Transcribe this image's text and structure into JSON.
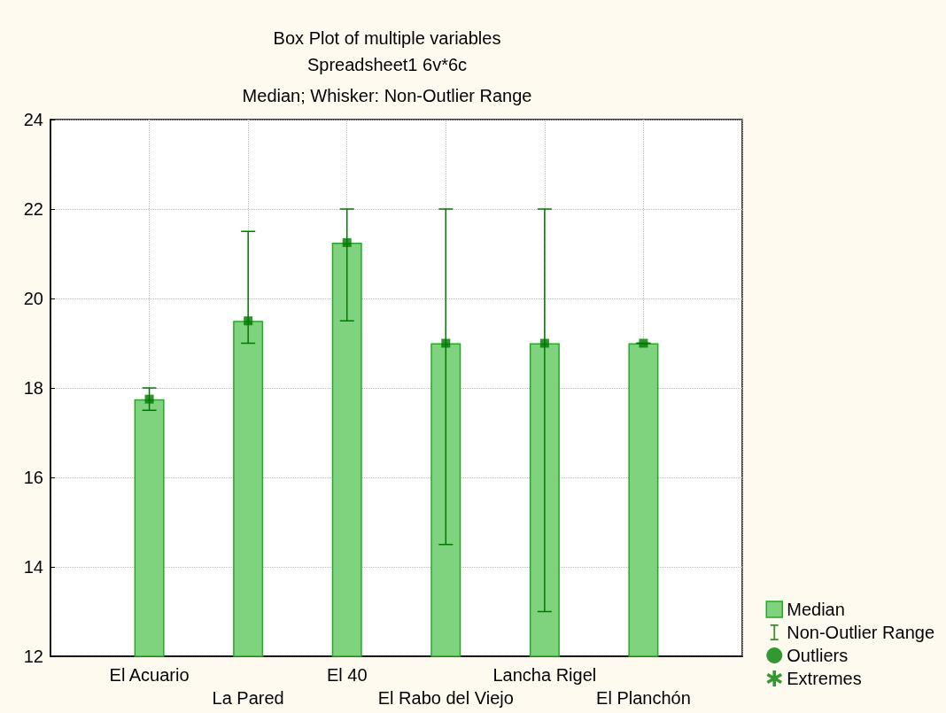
{
  "chart_data": {
    "type": "bar",
    "title": "Box Plot of multiple variables",
    "subtitle": "Spreadsheet1 6v*6c",
    "annotations": [
      "Median; Whisker: Non-Outlier Range"
    ],
    "categories": [
      null,
      "El Acuario",
      "La Pared",
      "El 40",
      "El Rabo del Viejo",
      "Lancha Rigel",
      "El Planchón",
      null
    ],
    "series": [
      {
        "name": "Median",
        "color": "#7fd37f",
        "values": [
          null,
          17.75,
          19.5,
          21.25,
          19,
          19,
          19,
          null
        ]
      },
      {
        "name": "Non-Outlier Range",
        "type": "scatter",
        "color": "#007700",
        "marker": "square",
        "values": [
          null,
          17.75,
          19.5,
          21.25,
          19,
          19,
          19,
          null
        ],
        "errors": [
          null,
          [
            17.5,
            18
          ],
          [
            19,
            21.5
          ],
          [
            19.5,
            22
          ],
          [
            14.5,
            22
          ],
          [
            13,
            22
          ],
          [
            19,
            19
          ],
          null
        ]
      },
      {
        "name": "Outliers",
        "type": "scatter",
        "color": "#008000",
        "marker": "circle",
        "values": [
          null,
          null,
          null,
          null,
          null,
          null,
          null,
          null
        ]
      },
      {
        "name": "Extremes",
        "type": "scatter",
        "color": "#008000",
        "marker": "star",
        "values": [
          null,
          null,
          null,
          null,
          null,
          null,
          null,
          null
        ]
      }
    ],
    "ylim": [
      12,
      24
    ],
    "yticks": [
      12,
      14,
      16,
      18,
      20,
      22,
      24
    ],
    "grid": true,
    "legend": "bottom right"
  }
}
